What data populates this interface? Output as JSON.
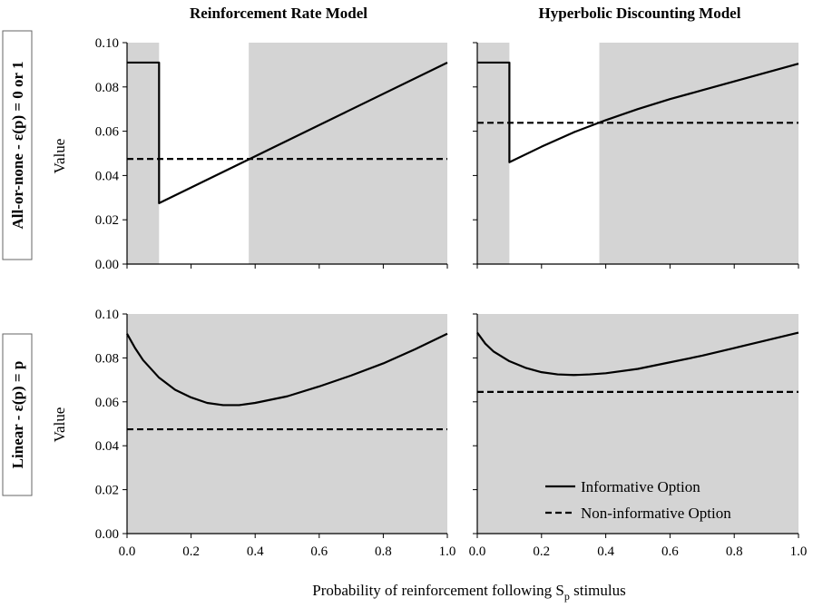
{
  "figure": {
    "columns": [
      "Reinforcement Rate Model",
      "Hyperbolic Discounting Model"
    ],
    "rows": [
      "All-or-none - ε(p) = 0 or 1",
      "Linear - ε(p) = p"
    ],
    "xlabel_main": "Probability of reinforcement following S",
    "xlabel_sub": "p",
    "xlabel_end": " stimulus",
    "ylabel": "Value",
    "legend": {
      "informative": "Informative Option",
      "noninformative": "Non-informative Option",
      "position": "lower-right of bottom-right panel"
    },
    "colors": {
      "shade": "#d4d4d4",
      "line": "#000000"
    }
  },
  "chart_data": [
    {
      "type": "line",
      "panel": "top-left",
      "xlim": [
        0,
        1
      ],
      "ylim": [
        0,
        0.1
      ],
      "xticks": [
        "0.0",
        "0.2",
        "0.4",
        "0.6",
        "0.8",
        "1.0"
      ],
      "yticks": [
        "0.00",
        "0.02",
        "0.04",
        "0.06",
        "0.08",
        "0.10"
      ],
      "shaded_x_ranges": [
        [
          0,
          0.1
        ],
        [
          0.38,
          1
        ]
      ],
      "series": [
        {
          "name": "Informative Option",
          "style": "solid",
          "x": [
            0,
            0.1,
            0.1,
            1.0
          ],
          "y": [
            0.091,
            0.091,
            0.0275,
            0.091
          ]
        },
        {
          "name": "Non-informative Option",
          "style": "dashed",
          "x": [
            0,
            1
          ],
          "y": [
            0.0475,
            0.0475
          ]
        }
      ]
    },
    {
      "type": "line",
      "panel": "top-right",
      "xlim": [
        0,
        1
      ],
      "ylim": [
        0,
        0.1
      ],
      "xticks": [
        "0.0",
        "0.2",
        "0.4",
        "0.6",
        "0.8",
        "1.0"
      ],
      "yticks": [
        "0.00",
        "0.02",
        "0.04",
        "0.06",
        "0.08",
        "0.10"
      ],
      "shaded_x_ranges": [
        [
          0,
          0.1
        ],
        [
          0.38,
          1
        ]
      ],
      "series": [
        {
          "name": "Informative Option",
          "style": "solid",
          "x": [
            0,
            0.1,
            0.1,
            0.2,
            0.3,
            0.4,
            0.5,
            0.6,
            0.7,
            0.8,
            0.9,
            1.0
          ],
          "y": [
            0.091,
            0.091,
            0.046,
            0.053,
            0.0595,
            0.065,
            0.07,
            0.0745,
            0.0785,
            0.0825,
            0.0865,
            0.0905
          ]
        },
        {
          "name": "Non-informative Option",
          "style": "dashed",
          "x": [
            0,
            1
          ],
          "y": [
            0.0638,
            0.0638
          ]
        }
      ]
    },
    {
      "type": "line",
      "panel": "bottom-left",
      "xlim": [
        0,
        1
      ],
      "ylim": [
        0,
        0.1
      ],
      "xticks": [
        "0.0",
        "0.2",
        "0.4",
        "0.6",
        "0.8",
        "1.0"
      ],
      "yticks": [
        "0.00",
        "0.02",
        "0.04",
        "0.06",
        "0.08",
        "0.10"
      ],
      "shaded_x_ranges": [
        [
          0,
          1
        ]
      ],
      "series": [
        {
          "name": "Informative Option",
          "style": "solid",
          "x": [
            0,
            0.025,
            0.05,
            0.1,
            0.15,
            0.2,
            0.25,
            0.3,
            0.35,
            0.4,
            0.5,
            0.6,
            0.7,
            0.8,
            0.9,
            1.0
          ],
          "y": [
            0.091,
            0.0845,
            0.079,
            0.071,
            0.0655,
            0.062,
            0.0595,
            0.0585,
            0.0585,
            0.0595,
            0.0625,
            0.067,
            0.072,
            0.0775,
            0.084,
            0.091
          ]
        },
        {
          "name": "Non-informative Option",
          "style": "dashed",
          "x": [
            0,
            1
          ],
          "y": [
            0.0475,
            0.0475
          ]
        }
      ]
    },
    {
      "type": "line",
      "panel": "bottom-right",
      "xlim": [
        0,
        1
      ],
      "ylim": [
        0,
        0.1
      ],
      "xticks": [
        "0.0",
        "0.2",
        "0.4",
        "0.6",
        "0.8",
        "1.0"
      ],
      "yticks": [
        "0.00",
        "0.02",
        "0.04",
        "0.06",
        "0.08",
        "0.10"
      ],
      "shaded_x_ranges": [
        [
          0,
          1
        ]
      ],
      "series": [
        {
          "name": "Informative Option",
          "style": "solid",
          "x": [
            0,
            0.025,
            0.05,
            0.1,
            0.15,
            0.2,
            0.25,
            0.3,
            0.35,
            0.4,
            0.5,
            0.6,
            0.7,
            0.8,
            0.9,
            1.0
          ],
          "y": [
            0.0915,
            0.0865,
            0.083,
            0.0785,
            0.0755,
            0.0735,
            0.0725,
            0.0722,
            0.0725,
            0.073,
            0.075,
            0.078,
            0.081,
            0.0845,
            0.088,
            0.0915
          ]
        },
        {
          "name": "Non-informative Option",
          "style": "dashed",
          "x": [
            0,
            1
          ],
          "y": [
            0.0645,
            0.0645
          ]
        }
      ]
    }
  ]
}
